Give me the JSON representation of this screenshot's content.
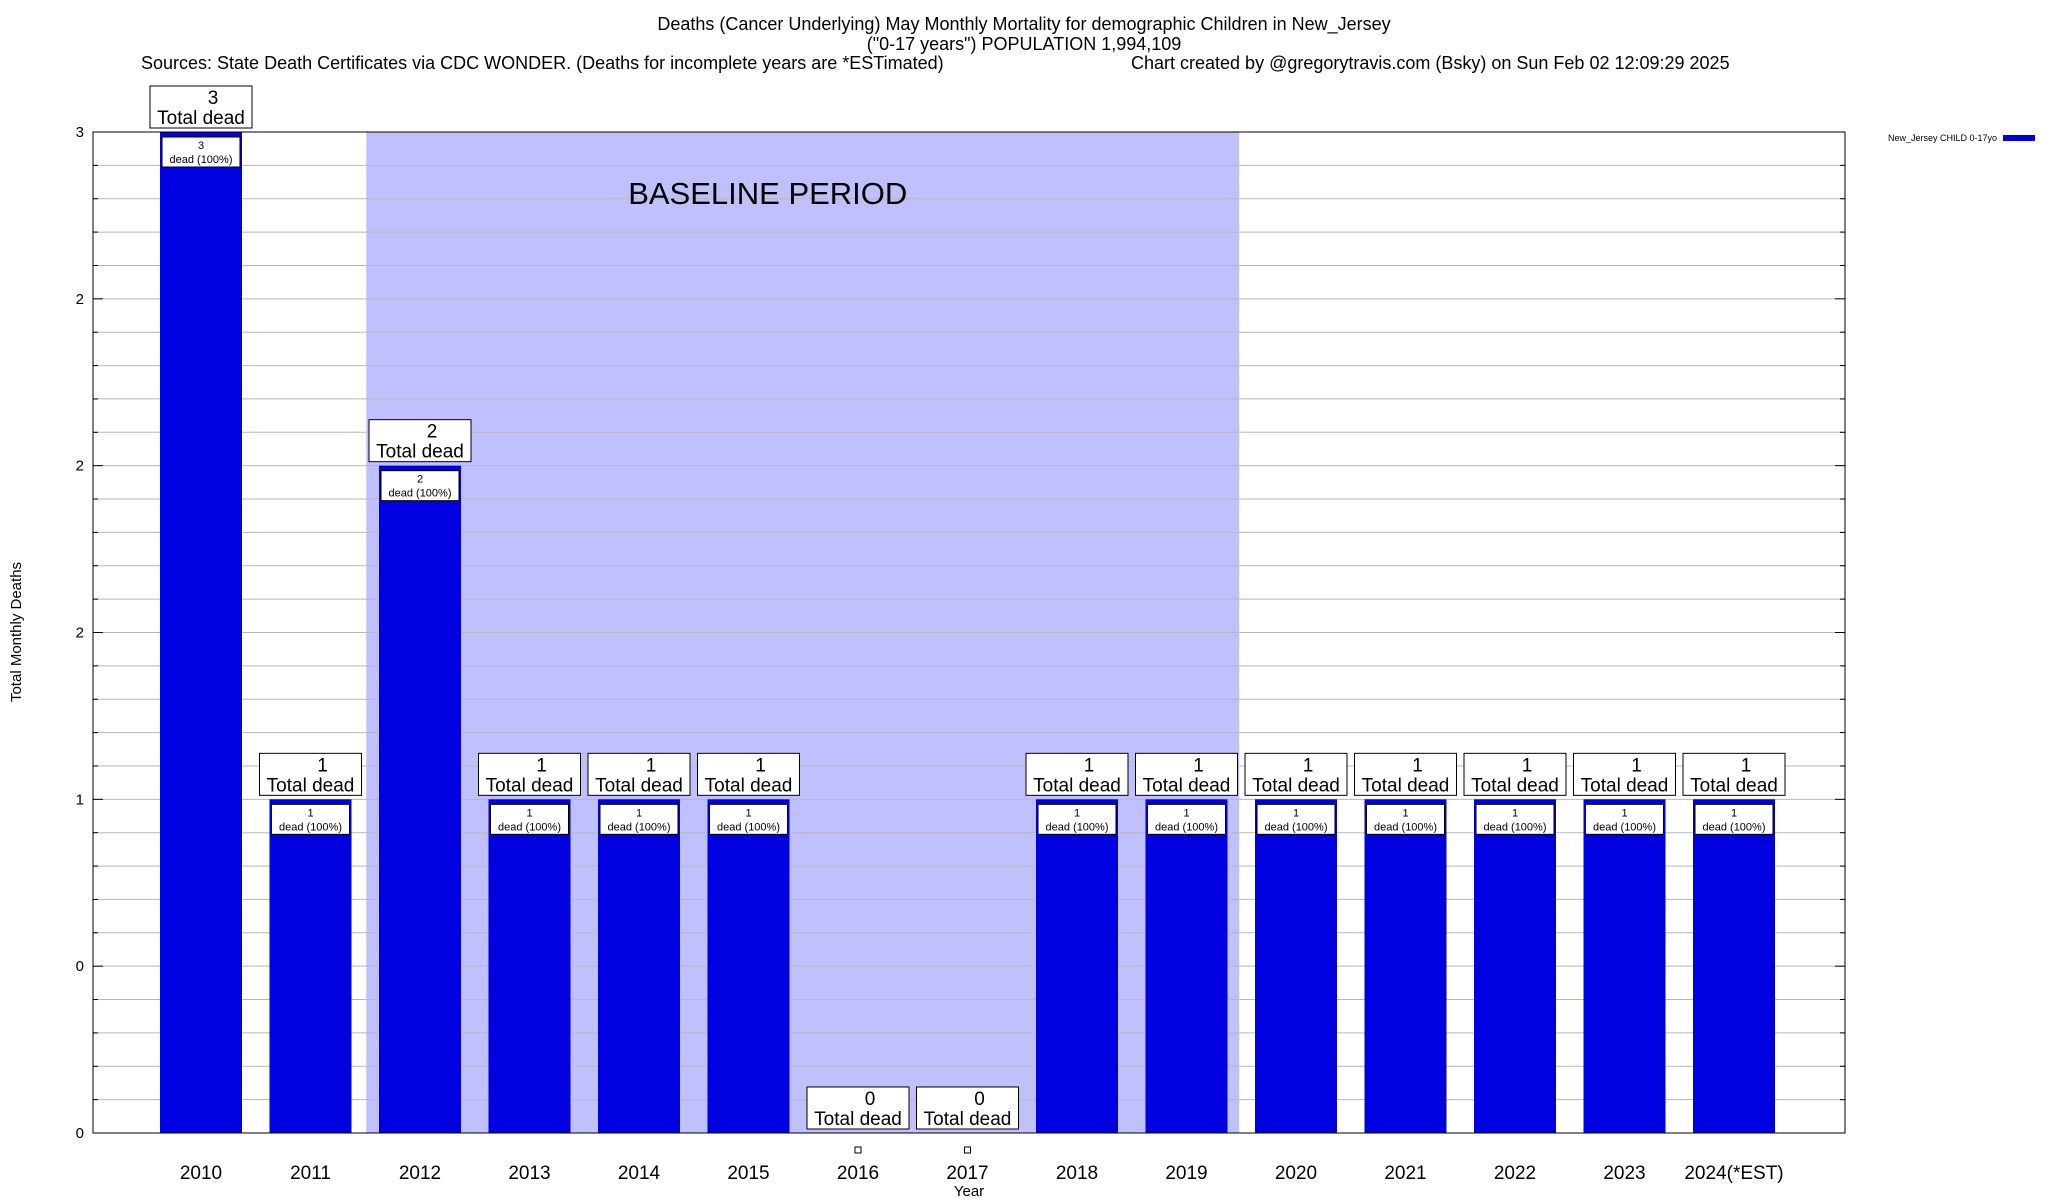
{
  "chart_data": {
    "type": "bar",
    "title_line1": "Deaths (Cancer Underlying) May Monthly Mortality for demographic Children in New_Jersey",
    "title_line2": "(\"0-17 years\") POPULATION 1,994,109",
    "sources": "Sources: State Death Certificates via CDC WONDER. (Deaths for incomplete years are *ESTimated)",
    "created": "Chart created by @gregorytravis.com (Bsky) on Sun Feb 02 12:09:29 2025",
    "xlabel": "Year",
    "ylabel": "Total Monthly Deaths",
    "ylim": [
      0,
      3
    ],
    "y_tick_labels": [
      {
        "value": 0,
        "label": "0"
      },
      {
        "value": 0.5,
        "label": "0"
      },
      {
        "value": 1,
        "label": "1"
      },
      {
        "value": 1.5,
        "label": "2"
      },
      {
        "value": 2,
        "label": "2"
      },
      {
        "value": 2.5,
        "label": "2"
      },
      {
        "value": 3,
        "label": "3"
      }
    ],
    "grid": true,
    "legend": {
      "position": "top-right",
      "label": "New_Jersey CHILD 0-17yo",
      "color": "#0000e0"
    },
    "baseline_label": "BASELINE PERIOD",
    "baseline_range": [
      "2012",
      "2019"
    ],
    "baseline_color": "#c0c0ff",
    "bar_color": "#0000e0",
    "categories": [
      "2010",
      "2011",
      "2012",
      "2013",
      "2014",
      "2015",
      "2016",
      "2017",
      "2018",
      "2019",
      "2020",
      "2021",
      "2022",
      "2023",
      "2024(*EST)"
    ],
    "values": [
      3,
      1,
      2,
      1,
      1,
      1,
      0,
      0,
      1,
      1,
      1,
      1,
      1,
      1,
      1
    ],
    "total_label_suffix": "Total dead",
    "inner_label_suffix": "dead (100%)"
  }
}
